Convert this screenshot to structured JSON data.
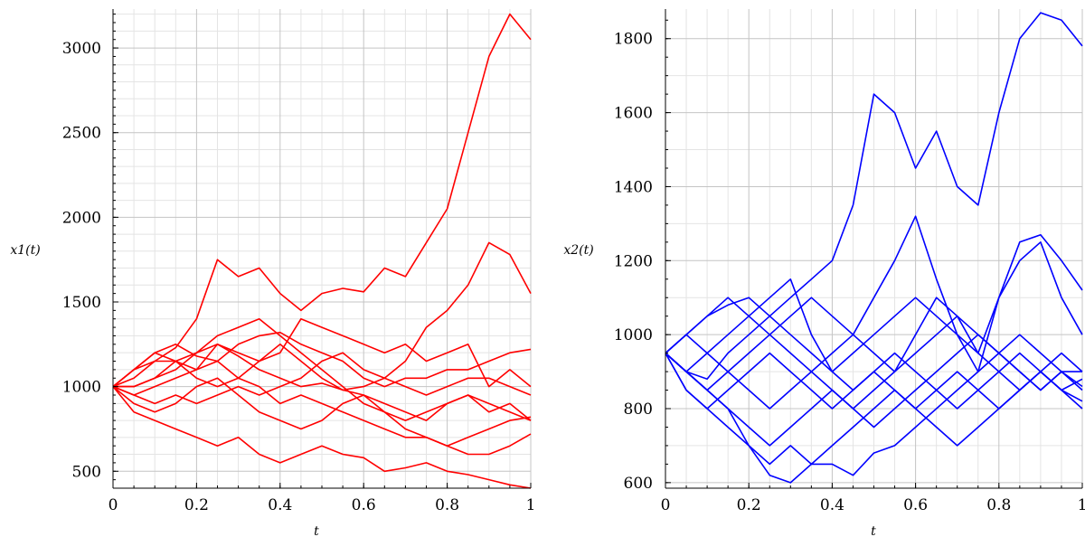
{
  "chart_data": [
    {
      "type": "line",
      "ylabel": "x1(t)",
      "xlabel": "t",
      "xlim": [
        0,
        1
      ],
      "ylim": [
        400,
        3230
      ],
      "xticks": [
        0,
        0.2,
        0.4,
        0.6,
        0.8,
        1
      ],
      "xtick_labels": [
        "0",
        "0.2",
        "0.4",
        "0.6",
        "0.8",
        "1"
      ],
      "yticks": [
        500,
        1000,
        1500,
        2000,
        2500,
        3000
      ],
      "ytick_labels": [
        "500",
        "1000",
        "1500",
        "2000",
        "2500",
        "3000"
      ],
      "grid": true,
      "color": "#ff0000",
      "x": [
        0,
        0.05,
        0.1,
        0.15,
        0.2,
        0.25,
        0.3,
        0.35,
        0.4,
        0.45,
        0.5,
        0.55,
        0.6,
        0.65,
        0.7,
        0.75,
        0.8,
        0.85,
        0.9,
        0.95,
        1.0
      ],
      "series": [
        {
          "values": [
            1000,
            1100,
            1150,
            1230,
            1400,
            1750,
            1650,
            1700,
            1550,
            1450,
            1550,
            1580,
            1560,
            1700,
            1650,
            1850,
            2050,
            2500,
            2950,
            3200,
            3050
          ]
        },
        {
          "values": [
            1000,
            1050,
            1150,
            1150,
            1200,
            1250,
            1180,
            1100,
            1050,
            1000,
            1020,
            980,
            1000,
            1050,
            1150,
            1350,
            1450,
            1600,
            1850,
            1780,
            1550
          ]
        },
        {
          "values": [
            1000,
            1100,
            1200,
            1250,
            1180,
            1150,
            1250,
            1300,
            1320,
            1250,
            1200,
            1150,
            1050,
            1000,
            1050,
            1050,
            1100,
            1100,
            1150,
            1200,
            1220
          ]
        },
        {
          "values": [
            1000,
            1000,
            1050,
            1150,
            1100,
            1250,
            1200,
            1150,
            1200,
            1400,
            1350,
            1300,
            1250,
            1200,
            1250,
            1150,
            1200,
            1250,
            1000,
            1100,
            1000
          ]
        },
        {
          "values": [
            1000,
            950,
            900,
            950,
            900,
            950,
            1000,
            950,
            1000,
            1050,
            1150,
            1200,
            1100,
            1050,
            1000,
            950,
            1000,
            1050,
            1050,
            1000,
            950
          ]
        },
        {
          "values": [
            1000,
            1100,
            1200,
            1150,
            1050,
            1000,
            1050,
            1150,
            1250,
            1150,
            1050,
            980,
            950,
            900,
            850,
            800,
            900,
            950,
            850,
            900,
            800
          ]
        },
        {
          "values": [
            1000,
            950,
            1000,
            1050,
            1100,
            1150,
            1050,
            1000,
            900,
            950,
            900,
            850,
            800,
            750,
            700,
            700,
            650,
            700,
            750,
            800,
            820
          ]
        },
        {
          "values": [
            1000,
            900,
            850,
            900,
            1000,
            1050,
            950,
            850,
            800,
            750,
            800,
            900,
            950,
            850,
            750,
            700,
            650,
            600,
            600,
            650,
            720
          ]
        },
        {
          "values": [
            1000,
            850,
            800,
            750,
            700,
            650,
            700,
            600,
            550,
            600,
            650,
            600,
            580,
            500,
            520,
            550,
            500,
            480,
            450,
            420,
            400
          ]
        },
        {
          "values": [
            1000,
            1000,
            1050,
            1100,
            1200,
            1300,
            1350,
            1400,
            1300,
            1200,
            1100,
            1000,
            900,
            850,
            800,
            850,
            900,
            950,
            900,
            850,
            800
          ]
        }
      ]
    },
    {
      "type": "line",
      "ylabel": "x2(t)",
      "xlabel": "t",
      "xlim": [
        0,
        1
      ],
      "ylim": [
        585,
        1880
      ],
      "xticks": [
        0,
        0.2,
        0.4,
        0.6,
        0.8,
        1
      ],
      "xtick_labels": [
        "0",
        "0.2",
        "0.4",
        "0.6",
        "0.8",
        "1"
      ],
      "yticks": [
        600,
        800,
        1000,
        1200,
        1400,
        1600,
        1800
      ],
      "ytick_labels": [
        "600",
        "800",
        "1000",
        "1200",
        "1400",
        "1600",
        "1800"
      ],
      "grid": true,
      "color": "#0000ff",
      "x": [
        0,
        0.05,
        0.1,
        0.15,
        0.2,
        0.25,
        0.3,
        0.35,
        0.4,
        0.45,
        0.5,
        0.55,
        0.6,
        0.65,
        0.7,
        0.75,
        0.8,
        0.85,
        0.9,
        0.95,
        1.0
      ],
      "series": [
        {
          "values": [
            950,
            900,
            880,
            950,
            1000,
            1050,
            1100,
            1150,
            1200,
            1350,
            1650,
            1600,
            1450,
            1550,
            1400,
            1350,
            1600,
            1800,
            1870,
            1850,
            1780
          ]
        },
        {
          "values": [
            950,
            1000,
            950,
            900,
            850,
            800,
            850,
            900,
            950,
            1000,
            1100,
            1200,
            1320,
            1150,
            1000,
            900,
            1100,
            1250,
            1270,
            1200,
            1120
          ]
        },
        {
          "values": [
            950,
            900,
            850,
            900,
            950,
            1000,
            1050,
            1100,
            1050,
            1000,
            950,
            900,
            1000,
            1100,
            1050,
            950,
            1100,
            1200,
            1250,
            1100,
            1000
          ]
        },
        {
          "values": [
            950,
            1000,
            1050,
            1080,
            1100,
            1050,
            1000,
            950,
            900,
            950,
            1000,
            1050,
            1100,
            1050,
            1000,
            950,
            900,
            850,
            900,
            950,
            900
          ]
        },
        {
          "values": [
            950,
            900,
            950,
            1000,
            1050,
            1100,
            1150,
            1000,
            900,
            850,
            900,
            950,
            900,
            850,
            800,
            850,
            900,
            950,
            900,
            850,
            880
          ]
        },
        {
          "values": [
            950,
            850,
            800,
            850,
            900,
            950,
            900,
            850,
            800,
            850,
            900,
            850,
            800,
            850,
            900,
            850,
            800,
            850,
            900,
            850,
            820
          ]
        },
        {
          "values": [
            950,
            900,
            850,
            800,
            750,
            700,
            750,
            800,
            850,
            800,
            750,
            800,
            850,
            900,
            950,
            1000,
            950,
            900,
            850,
            900,
            860
          ]
        },
        {
          "values": [
            950,
            850,
            800,
            750,
            700,
            650,
            700,
            650,
            700,
            750,
            800,
            850,
            800,
            750,
            700,
            750,
            800,
            850,
            900,
            850,
            800
          ]
        },
        {
          "values": [
            950,
            900,
            850,
            800,
            700,
            620,
            600,
            650,
            650,
            620,
            680,
            700,
            750,
            800,
            850,
            900,
            950,
            1000,
            950,
            900,
            850
          ]
        },
        {
          "values": [
            950,
            1000,
            1050,
            1100,
            1050,
            1000,
            950,
            900,
            850,
            800,
            850,
            900,
            950,
            1000,
            1050,
            1000,
            950,
            900,
            850,
            900,
            900
          ]
        }
      ]
    }
  ]
}
